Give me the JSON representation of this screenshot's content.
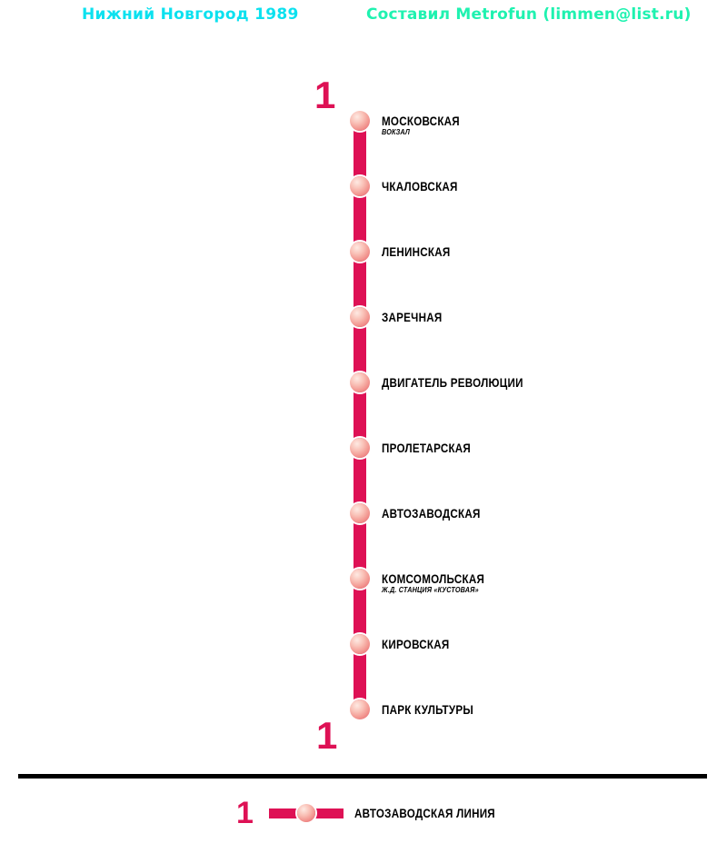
{
  "header": {
    "title": "Нижний Новгород 1989",
    "credit": "Составил Metrofun (limmen@list.ru)",
    "title_color": "#0ce1ef",
    "credit_color": "#1ff2b0"
  },
  "line": {
    "number": "1",
    "color": "#de1155",
    "stations": [
      {
        "name": "МОСКОВСКАЯ",
        "note": "ВОКЗАЛ"
      },
      {
        "name": "ЧКАЛОВСКАЯ"
      },
      {
        "name": "ЛЕНИНСКАЯ"
      },
      {
        "name": "ЗАРЕЧНАЯ"
      },
      {
        "name": "ДВИГАТЕЛЬ РЕВОЛЮЦИИ"
      },
      {
        "name": "ПРОЛЕТАРСКАЯ"
      },
      {
        "name": "АВТОЗАВОДСКАЯ"
      },
      {
        "name": "КОМСОМОЛЬСКАЯ",
        "note": "Ж.Д. СТАНЦИЯ «КУСТОВАЯ»"
      },
      {
        "name": "КИРОВСКАЯ"
      },
      {
        "name": "ПАРК КУЛЬТУРЫ"
      }
    ]
  },
  "legend": {
    "line_number": "1",
    "line_label": "АВТОЗАВОДСКАЯ ЛИНИЯ"
  }
}
